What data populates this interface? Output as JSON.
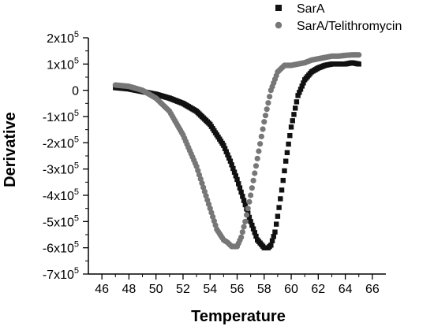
{
  "chart_data": {
    "type": "scatter",
    "title": "",
    "xlabel": "Temperature",
    "ylabel": "Derivative",
    "xlim": [
      45,
      67
    ],
    "ylim": [
      -700000,
      200000
    ],
    "x_ticks": [
      46,
      48,
      50,
      52,
      54,
      56,
      58,
      60,
      62,
      64,
      66
    ],
    "y_ticks": [
      {
        "value": 200000,
        "mantissa": "2x10",
        "exp": "5"
      },
      {
        "value": 100000,
        "mantissa": "1x10",
        "exp": "5"
      },
      {
        "value": 0,
        "mantissa": "0",
        "exp": ""
      },
      {
        "value": -100000,
        "mantissa": "-1x10",
        "exp": "5"
      },
      {
        "value": -200000,
        "mantissa": "-2x10",
        "exp": "5"
      },
      {
        "value": -300000,
        "mantissa": "-3x10",
        "exp": "5"
      },
      {
        "value": -400000,
        "mantissa": "-4x10",
        "exp": "5"
      },
      {
        "value": -500000,
        "mantissa": "-5x10",
        "exp": "5"
      },
      {
        "value": -600000,
        "mantissa": "-6x10",
        "exp": "5"
      },
      {
        "value": -700000,
        "mantissa": "-7x10",
        "exp": "5"
      }
    ],
    "grid": false,
    "legend_position": "top-right",
    "series": [
      {
        "name": "SarA",
        "marker": "square",
        "color": "#111111",
        "x": [
          47.0,
          48.0,
          49.0,
          50.0,
          51.0,
          52.0,
          53.0,
          54.0,
          55.0,
          55.5,
          56.0,
          56.5,
          57.0,
          57.5,
          58.0,
          58.3,
          58.5,
          58.8,
          59.0,
          59.3,
          59.6,
          60.0,
          60.5,
          61.0,
          61.5,
          62.0,
          62.5,
          63.0,
          63.5,
          64.0,
          64.5,
          65.0
        ],
        "y": [
          10000,
          5000,
          -5000,
          -15000,
          -30000,
          -50000,
          -80000,
          -130000,
          -210000,
          -270000,
          -340000,
          -420000,
          -500000,
          -570000,
          -600000,
          -600000,
          -590000,
          -540000,
          -480000,
          -380000,
          -270000,
          -140000,
          -20000,
          40000,
          70000,
          85000,
          95000,
          100000,
          100000,
          100000,
          105000,
          100000
        ]
      },
      {
        "name": "SarA/Telithromycin",
        "marker": "circle",
        "color": "#777777",
        "x": [
          47.0,
          48.0,
          49.0,
          50.0,
          51.0,
          52.0,
          53.0,
          53.5,
          54.0,
          54.5,
          55.0,
          55.3,
          55.6,
          56.0,
          56.3,
          56.6,
          57.0,
          57.5,
          58.0,
          58.5,
          59.0,
          59.5,
          60.0,
          60.5,
          61.0,
          61.5,
          62.0,
          62.5,
          63.0,
          63.5,
          64.0,
          64.5,
          65.0
        ],
        "y": [
          20000,
          15000,
          0,
          -30000,
          -80000,
          -170000,
          -290000,
          -370000,
          -450000,
          -530000,
          -570000,
          -580000,
          -595000,
          -595000,
          -560000,
          -500000,
          -400000,
          -260000,
          -120000,
          0,
          70000,
          95000,
          95000,
          100000,
          105000,
          115000,
          120000,
          125000,
          130000,
          130000,
          133000,
          135000,
          135000
        ]
      }
    ]
  }
}
